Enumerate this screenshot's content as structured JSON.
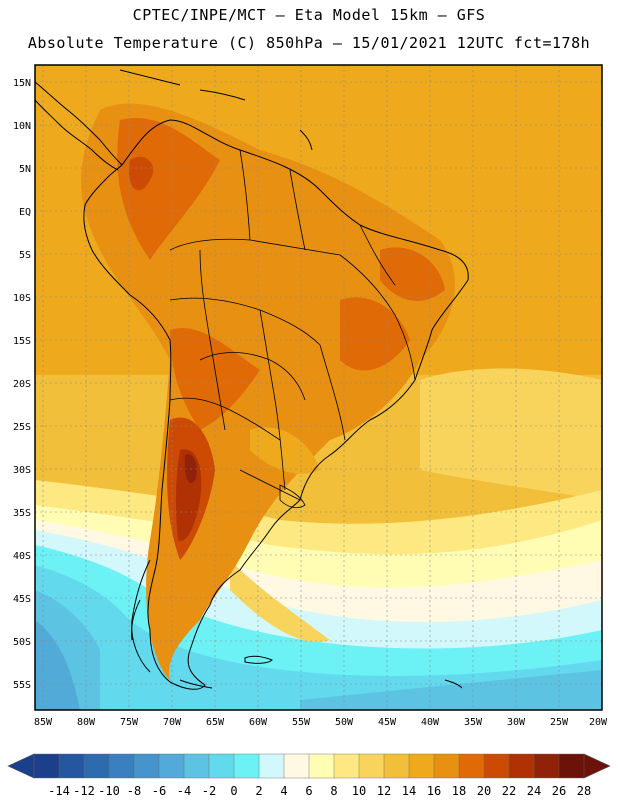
{
  "header": {
    "line1": "CPTEC/INPE/MCT –  Eta Model 15km – GFS",
    "line2": "Absolute Temperature (C) 850hPa – 15/01/2021 12UTC fct=178h"
  },
  "map": {
    "lat_labels": [
      "15N",
      "10N",
      "5N",
      "EQ",
      "5S",
      "10S",
      "15S",
      "20S",
      "25S",
      "30S",
      "35S",
      "40S",
      "45S",
      "50S",
      "55S"
    ],
    "lon_labels": [
      "85W",
      "80W",
      "75W",
      "70W",
      "65W",
      "60W",
      "55W",
      "50W",
      "45W",
      "40W",
      "35W",
      "30W",
      "25W",
      "20W"
    ]
  },
  "colorbar": {
    "labels": [
      "-14",
      "-12",
      "-10",
      "-8",
      "-6",
      "-4",
      "-2",
      "0",
      "2",
      "4",
      "6",
      "8",
      "10",
      "12",
      "14",
      "16",
      "18",
      "20",
      "22",
      "24",
      "26",
      "28"
    ],
    "colors": [
      "#1c3f8c",
      "#2457a0",
      "#2e6aae",
      "#3a7fc0",
      "#4794cc",
      "#52aad8",
      "#5cc3e2",
      "#62d9ec",
      "#6cf2f5",
      "#d2f8fb",
      "#fff8e2",
      "#fffcb4",
      "#fde882",
      "#f9d45c",
      "#f2bf3a",
      "#eeaa1c",
      "#e89012",
      "#df6a06",
      "#cc4a04",
      "#b03204",
      "#8f2208",
      "#6c1208"
    ]
  }
}
